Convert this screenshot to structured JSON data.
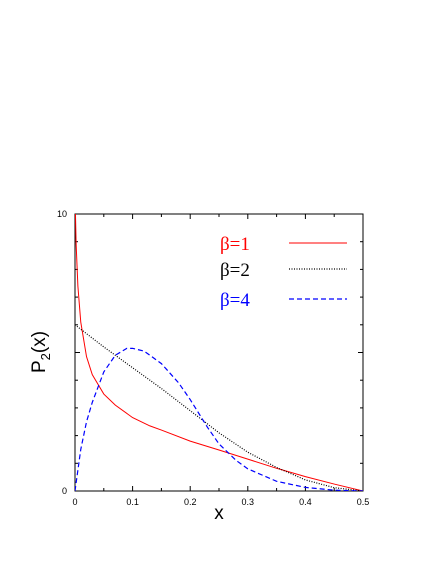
{
  "chart_data": {
    "type": "line",
    "title": "",
    "xlabel": "x",
    "ylabel_main": "P",
    "ylabel_sub": "2",
    "ylabel_tail": "(x)",
    "xlim": [
      0,
      0.5
    ],
    "ylim": [
      0,
      10
    ],
    "x_ticks": [
      "0",
      "0.1",
      "0.2",
      "0.3",
      "0.4",
      "0.5"
    ],
    "y_ticks": [
      "0",
      "10"
    ],
    "legend_position": "top-right",
    "series": [
      {
        "name": "β=1",
        "color": "#ff0000",
        "style": "solid",
        "x": [
          0.0008,
          0.002,
          0.005,
          0.01,
          0.02,
          0.03,
          0.05,
          0.07,
          0.1,
          0.13,
          0.15,
          0.2,
          0.25,
          0.3,
          0.35,
          0.4,
          0.45,
          0.5
        ],
        "y": [
          10.0,
          8.9,
          7.4,
          6.1,
          4.85,
          4.2,
          3.5,
          3.1,
          2.65,
          2.35,
          2.2,
          1.8,
          1.48,
          1.15,
          0.82,
          0.52,
          0.25,
          0.0
        ]
      },
      {
        "name": "β=2",
        "color": "#000000",
        "style": "dotted",
        "x": [
          0,
          0.05,
          0.1,
          0.15,
          0.2,
          0.25,
          0.3,
          0.35,
          0.4,
          0.45,
          0.5
        ],
        "y": [
          6.0,
          5.2,
          4.45,
          3.7,
          2.9,
          2.1,
          1.4,
          0.85,
          0.4,
          0.12,
          0.0
        ]
      },
      {
        "name": "β=4",
        "color": "#0000ff",
        "style": "dashed",
        "x": [
          0,
          0.01,
          0.02,
          0.03,
          0.05,
          0.07,
          0.09,
          0.1,
          0.12,
          0.15,
          0.18,
          0.2,
          0.23,
          0.25,
          0.28,
          0.3,
          0.35,
          0.4,
          0.45,
          0.5
        ],
        "y": [
          0.0,
          1.5,
          2.5,
          3.2,
          4.3,
          4.9,
          5.15,
          5.15,
          5.05,
          4.6,
          3.9,
          3.3,
          2.3,
          1.7,
          1.1,
          0.8,
          0.35,
          0.13,
          0.03,
          0.0
        ]
      }
    ]
  }
}
